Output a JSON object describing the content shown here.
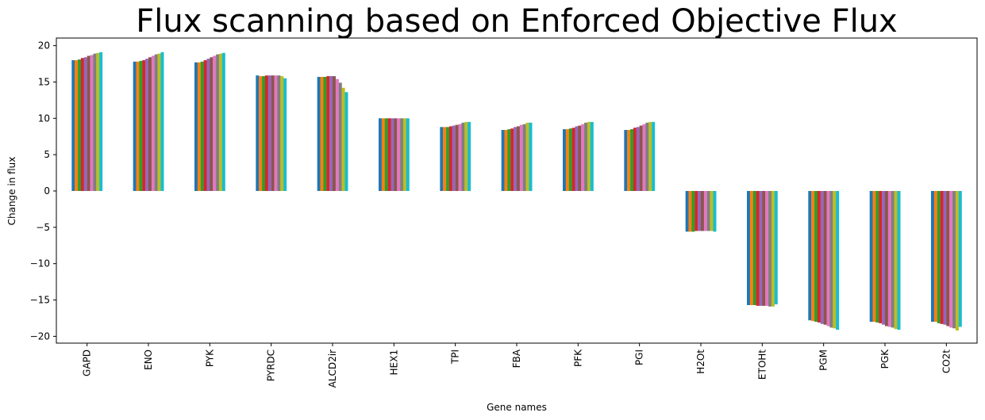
{
  "chart_data": {
    "type": "bar",
    "title": "Flux scanning based on Enforced Objective Flux",
    "xlabel": "Gene names",
    "ylabel": "Change in flux",
    "ylim": [
      -21,
      21
    ],
    "yticks": [
      -20,
      -15,
      -10,
      -5,
      0,
      5,
      10,
      15,
      20
    ],
    "grid": false,
    "legend": "none",
    "categories": [
      "GAPD",
      "ENO",
      "PYK",
      "PYRDC",
      "ALCD2ir",
      "HEX1",
      "TPI",
      "FBA",
      "PFK",
      "PGI",
      "H2Ot",
      "ETOHt",
      "PGM",
      "PGK",
      "CO2t"
    ],
    "colors": [
      "#1f77b4",
      "#ff7f0e",
      "#2ca02c",
      "#d62728",
      "#9467bd",
      "#8c564b",
      "#e377c2",
      "#7f7f7f",
      "#bcbd22",
      "#17becf"
    ],
    "series": [
      {
        "values": [
          18.0,
          17.8,
          17.7,
          15.9,
          15.7,
          10.0,
          8.8,
          8.4,
          8.5,
          8.4,
          -5.6,
          -15.7,
          -17.8,
          -18.0,
          -18.0
        ]
      },
      {
        "values": [
          18.0,
          17.8,
          17.7,
          15.8,
          15.7,
          10.0,
          8.8,
          8.4,
          8.5,
          8.4,
          -5.6,
          -15.7,
          -17.9,
          -18.0,
          -18.0
        ]
      },
      {
        "values": [
          18.1,
          17.9,
          17.8,
          15.8,
          15.7,
          10.0,
          8.8,
          8.5,
          8.6,
          8.5,
          -5.6,
          -15.7,
          -18.0,
          -18.1,
          -18.2
        ]
      },
      {
        "values": [
          18.3,
          18.0,
          18.0,
          15.9,
          15.8,
          10.0,
          8.9,
          8.6,
          8.7,
          8.7,
          -5.5,
          -15.8,
          -18.1,
          -18.2,
          -18.3
        ]
      },
      {
        "values": [
          18.4,
          18.2,
          18.2,
          15.9,
          15.8,
          10.0,
          9.0,
          8.8,
          8.9,
          8.8,
          -5.5,
          -15.8,
          -18.3,
          -18.4,
          -18.4
        ]
      },
      {
        "values": [
          18.6,
          18.4,
          18.4,
          15.9,
          15.8,
          10.0,
          9.1,
          8.9,
          9.0,
          9.0,
          -5.5,
          -15.8,
          -18.4,
          -18.6,
          -18.6
        ]
      },
      {
        "values": [
          18.7,
          18.6,
          18.6,
          15.9,
          15.4,
          10.0,
          9.2,
          9.1,
          9.2,
          9.2,
          -5.5,
          -15.8,
          -18.6,
          -18.7,
          -18.8
        ]
      },
      {
        "values": [
          18.9,
          18.8,
          18.8,
          15.9,
          14.9,
          10.0,
          9.4,
          9.2,
          9.4,
          9.4,
          -5.5,
          -15.9,
          -18.8,
          -18.8,
          -18.9
        ]
      },
      {
        "values": [
          19.0,
          18.9,
          18.9,
          15.8,
          14.2,
          10.0,
          9.5,
          9.4,
          9.5,
          9.5,
          -5.5,
          -15.9,
          -18.9,
          -19.0,
          -19.2
        ]
      },
      {
        "values": [
          19.1,
          19.1,
          19.0,
          15.5,
          13.6,
          10.0,
          9.5,
          9.4,
          9.5,
          9.5,
          -5.6,
          -15.6,
          -19.1,
          -19.1,
          -18.7
        ]
      }
    ]
  }
}
